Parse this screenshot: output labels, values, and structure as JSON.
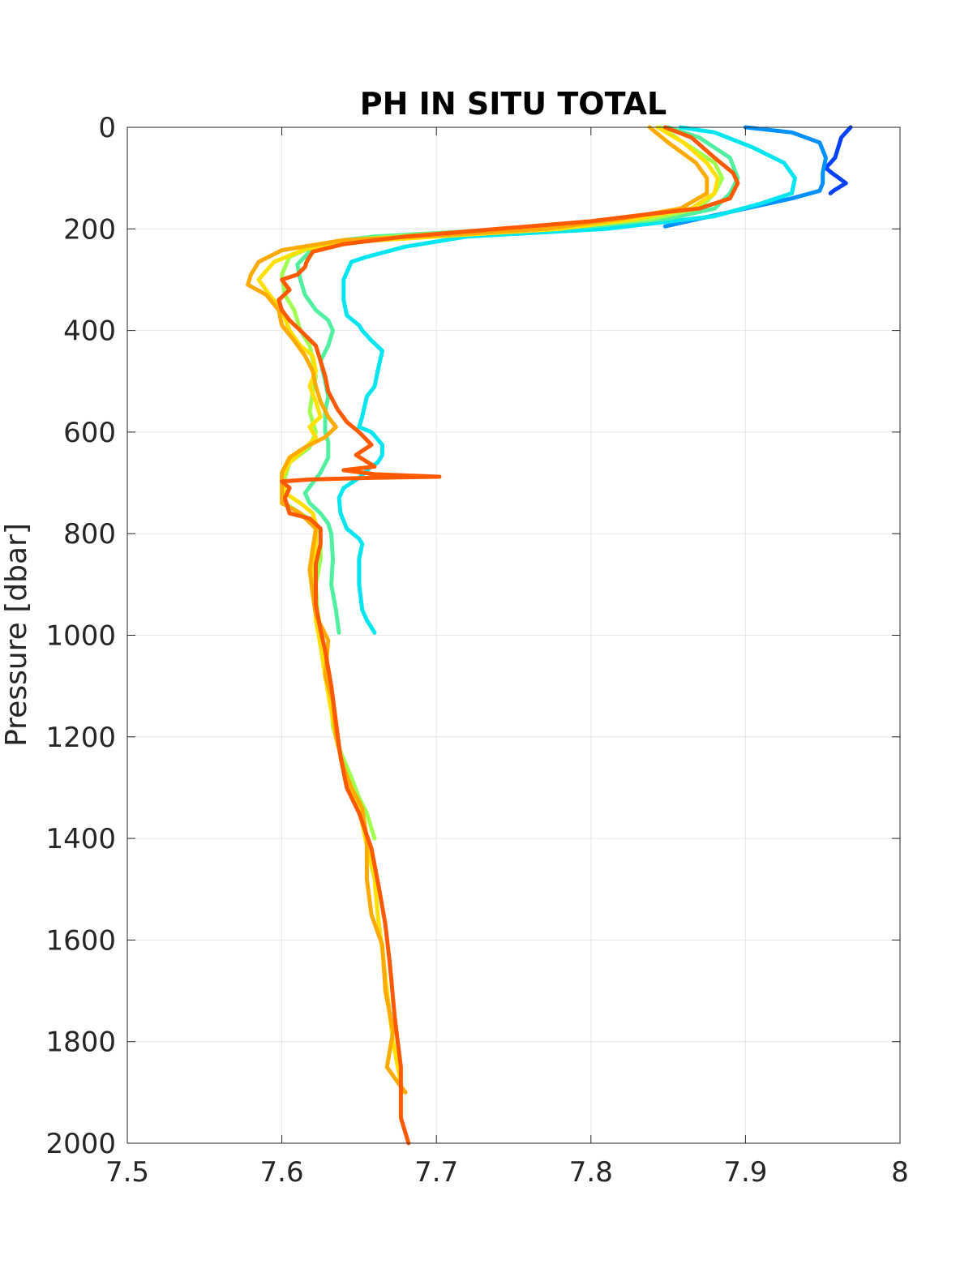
{
  "chart_data": {
    "type": "line",
    "title": "PH IN SITU TOTAL",
    "xlabel": "",
    "ylabel": "Pressure [dbar]",
    "xlim": [
      7.5,
      8
    ],
    "ylim": [
      0,
      2000
    ],
    "y_reversed": true,
    "grid": true,
    "xticks": [
      "7.5",
      "7.6",
      "7.7",
      "7.8",
      "7.9",
      "8"
    ],
    "yticks": [
      "0",
      "200",
      "400",
      "600",
      "800",
      "1000",
      "1200",
      "1400",
      "1600",
      "1800",
      "2000"
    ],
    "series": [
      {
        "color": "#0040ff",
        "points": [
          [
            7.968,
            0
          ],
          [
            7.962,
            20
          ],
          [
            7.958,
            60
          ],
          [
            7.952,
            80
          ],
          [
            7.956,
            90
          ],
          [
            7.965,
            110
          ],
          [
            7.957,
            125
          ],
          [
            7.955,
            130
          ]
        ]
      },
      {
        "color": "#0090ff",
        "points": [
          [
            7.9,
            0
          ],
          [
            7.93,
            10
          ],
          [
            7.948,
            30
          ],
          [
            7.952,
            60
          ],
          [
            7.95,
            90
          ],
          [
            7.95,
            110
          ],
          [
            7.948,
            125
          ],
          [
            7.93,
            140
          ],
          [
            7.9,
            160
          ],
          [
            7.87,
            180
          ],
          [
            7.848,
            195
          ]
        ]
      },
      {
        "color": "#00e6f0",
        "points": [
          [
            7.858,
            0
          ],
          [
            7.88,
            10
          ],
          [
            7.905,
            40
          ],
          [
            7.925,
            70
          ],
          [
            7.932,
            100
          ],
          [
            7.93,
            130
          ],
          [
            7.91,
            150
          ],
          [
            7.88,
            175
          ],
          [
            7.81,
            200
          ],
          [
            7.72,
            215
          ],
          [
            7.68,
            235
          ],
          [
            7.655,
            255
          ],
          [
            7.645,
            265
          ],
          [
            7.64,
            300
          ],
          [
            7.64,
            340
          ],
          [
            7.642,
            370
          ],
          [
            7.65,
            390
          ],
          [
            7.652,
            400
          ],
          [
            7.658,
            420
          ],
          [
            7.665,
            440
          ],
          [
            7.662,
            480
          ],
          [
            7.66,
            510
          ],
          [
            7.655,
            530
          ],
          [
            7.652,
            570
          ],
          [
            7.65,
            590
          ],
          [
            7.658,
            600
          ],
          [
            7.665,
            625
          ],
          [
            7.665,
            645
          ],
          [
            7.662,
            660
          ],
          [
            7.657,
            670
          ],
          [
            7.65,
            690
          ],
          [
            7.64,
            710
          ],
          [
            7.637,
            730
          ],
          [
            7.638,
            760
          ],
          [
            7.642,
            790
          ],
          [
            7.65,
            810
          ],
          [
            7.652,
            820
          ],
          [
            7.65,
            850
          ],
          [
            7.65,
            900
          ],
          [
            7.652,
            950
          ],
          [
            7.655,
            970
          ],
          [
            7.66,
            995
          ]
        ]
      },
      {
        "color": "#50f0a0",
        "points": [
          [
            7.85,
            0
          ],
          [
            7.87,
            20
          ],
          [
            7.89,
            60
          ],
          [
            7.895,
            100
          ],
          [
            7.89,
            130
          ],
          [
            7.88,
            160
          ],
          [
            7.85,
            180
          ],
          [
            7.8,
            195
          ],
          [
            7.72,
            205
          ],
          [
            7.66,
            215
          ],
          [
            7.64,
            222
          ],
          [
            7.628,
            230
          ],
          [
            7.618,
            245
          ],
          [
            7.61,
            270
          ],
          [
            7.612,
            300
          ],
          [
            7.615,
            330
          ],
          [
            7.622,
            360
          ],
          [
            7.63,
            380
          ],
          [
            7.633,
            400
          ],
          [
            7.63,
            430
          ],
          [
            7.625,
            460
          ],
          [
            7.628,
            500
          ],
          [
            7.63,
            530
          ],
          [
            7.628,
            560
          ],
          [
            7.628,
            600
          ],
          [
            7.63,
            620
          ],
          [
            7.63,
            650
          ],
          [
            7.625,
            680
          ],
          [
            7.62,
            700
          ],
          [
            7.615,
            720
          ],
          [
            7.618,
            740
          ],
          [
            7.625,
            760
          ],
          [
            7.63,
            780
          ],
          [
            7.632,
            800
          ],
          [
            7.633,
            850
          ],
          [
            7.632,
            900
          ],
          [
            7.635,
            950
          ],
          [
            7.637,
            995
          ]
        ]
      },
      {
        "color": "#a0ff50",
        "points": [
          [
            7.845,
            0
          ],
          [
            7.86,
            30
          ],
          [
            7.88,
            70
          ],
          [
            7.885,
            100
          ],
          [
            7.88,
            130
          ],
          [
            7.87,
            160
          ],
          [
            7.84,
            180
          ],
          [
            7.79,
            195
          ],
          [
            7.72,
            205
          ],
          [
            7.65,
            220
          ],
          [
            7.62,
            235
          ],
          [
            7.605,
            255
          ],
          [
            7.6,
            290
          ],
          [
            7.602,
            330
          ],
          [
            7.608,
            360
          ],
          [
            7.612,
            400
          ],
          [
            7.618,
            430
          ],
          [
            7.62,
            460
          ],
          [
            7.622,
            490
          ],
          [
            7.62,
            520
          ],
          [
            7.618,
            560
          ],
          [
            7.622,
            600
          ],
          [
            7.618,
            630
          ],
          [
            7.605,
            660
          ],
          [
            7.602,
            690
          ],
          [
            7.6,
            720
          ],
          [
            7.602,
            740
          ],
          [
            7.612,
            760
          ],
          [
            7.622,
            780
          ],
          [
            7.625,
            800
          ],
          [
            7.625,
            850
          ],
          [
            7.622,
            900
          ],
          [
            7.623,
            950
          ],
          [
            7.625,
            990
          ],
          [
            7.628,
            1030
          ],
          [
            7.63,
            1080
          ],
          [
            7.632,
            1130
          ],
          [
            7.633,
            1180
          ],
          [
            7.638,
            1230
          ],
          [
            7.645,
            1280
          ],
          [
            7.65,
            1320
          ],
          [
            7.655,
            1350
          ],
          [
            7.658,
            1380
          ],
          [
            7.66,
            1400
          ]
        ]
      },
      {
        "color": "#ffe000",
        "points": [
          [
            7.843,
            0
          ],
          [
            7.86,
            30
          ],
          [
            7.875,
            70
          ],
          [
            7.882,
            100
          ],
          [
            7.88,
            130
          ],
          [
            7.865,
            160
          ],
          [
            7.83,
            180
          ],
          [
            7.78,
            200
          ],
          [
            7.7,
            215
          ],
          [
            7.65,
            225
          ],
          [
            7.615,
            240
          ],
          [
            7.595,
            265
          ],
          [
            7.585,
            300
          ],
          [
            7.592,
            330
          ],
          [
            7.6,
            360
          ],
          [
            7.605,
            400
          ],
          [
            7.612,
            430
          ],
          [
            7.62,
            450
          ],
          [
            7.622,
            480
          ],
          [
            7.618,
            510
          ],
          [
            7.622,
            540
          ],
          [
            7.625,
            570
          ],
          [
            7.618,
            590
          ],
          [
            7.622,
            610
          ],
          [
            7.612,
            640
          ],
          [
            7.605,
            660
          ],
          [
            7.6,
            690
          ],
          [
            7.602,
            720
          ],
          [
            7.612,
            740
          ],
          [
            7.62,
            760
          ],
          [
            7.622,
            780
          ],
          [
            7.622,
            820
          ],
          [
            7.62,
            870
          ],
          [
            7.622,
            920
          ],
          [
            7.622,
            970
          ],
          [
            7.625,
            1020
          ],
          [
            7.628,
            1080
          ],
          [
            7.632,
            1150
          ],
          [
            7.635,
            1200
          ],
          [
            7.64,
            1260
          ],
          [
            7.645,
            1300
          ],
          [
            7.65,
            1340
          ],
          [
            7.654,
            1400
          ],
          [
            7.66,
            1480
          ],
          [
            7.662,
            1550
          ],
          [
            7.665,
            1620
          ],
          [
            7.668,
            1700
          ],
          [
            7.672,
            1800
          ],
          [
            7.678,
            1900
          ]
        ]
      },
      {
        "color": "#ffaa00",
        "points": [
          [
            7.838,
            0
          ],
          [
            7.85,
            30
          ],
          [
            7.868,
            70
          ],
          [
            7.875,
            100
          ],
          [
            7.875,
            130
          ],
          [
            7.858,
            160
          ],
          [
            7.82,
            180
          ],
          [
            7.77,
            200
          ],
          [
            7.7,
            213
          ],
          [
            7.64,
            222
          ],
          [
            7.6,
            242
          ],
          [
            7.585,
            265
          ],
          [
            7.58,
            290
          ],
          [
            7.578,
            310
          ],
          [
            7.59,
            330
          ],
          [
            7.598,
            360
          ],
          [
            7.6,
            390
          ],
          [
            7.608,
            420
          ],
          [
            7.615,
            450
          ],
          [
            7.62,
            480
          ],
          [
            7.622,
            510
          ],
          [
            7.625,
            540
          ],
          [
            7.63,
            570
          ],
          [
            7.635,
            590
          ],
          [
            7.628,
            610
          ],
          [
            7.615,
            630
          ],
          [
            7.605,
            650
          ],
          [
            7.6,
            680
          ],
          [
            7.6,
            710
          ],
          [
            7.6,
            740
          ],
          [
            7.612,
            760
          ],
          [
            7.622,
            790
          ],
          [
            7.62,
            830
          ],
          [
            7.618,
            870
          ],
          [
            7.62,
            920
          ],
          [
            7.622,
            960
          ],
          [
            7.63,
            1010
          ],
          [
            7.628,
            1080
          ],
          [
            7.633,
            1130
          ],
          [
            7.635,
            1200
          ],
          [
            7.64,
            1260
          ],
          [
            7.645,
            1300
          ],
          [
            7.652,
            1340
          ],
          [
            7.655,
            1400
          ],
          [
            7.655,
            1480
          ],
          [
            7.658,
            1550
          ],
          [
            7.665,
            1610
          ],
          [
            7.667,
            1700
          ],
          [
            7.672,
            1780
          ],
          [
            7.668,
            1850
          ],
          [
            7.675,
            1880
          ],
          [
            7.68,
            1900
          ]
        ]
      },
      {
        "color": "#ff5a00",
        "points": [
          [
            7.848,
            0
          ],
          [
            7.865,
            20
          ],
          [
            7.88,
            60
          ],
          [
            7.892,
            90
          ],
          [
            7.895,
            110
          ],
          [
            7.89,
            140
          ],
          [
            7.87,
            160
          ],
          [
            7.84,
            170
          ],
          [
            7.8,
            185
          ],
          [
            7.74,
            200
          ],
          [
            7.7,
            210
          ],
          [
            7.68,
            215
          ],
          [
            7.64,
            230
          ],
          [
            7.62,
            245
          ],
          [
            7.616,
            265
          ],
          [
            7.615,
            275
          ],
          [
            7.61,
            290
          ],
          [
            7.6,
            300
          ],
          [
            7.605,
            320
          ],
          [
            7.598,
            340
          ],
          [
            7.6,
            360
          ],
          [
            7.605,
            380
          ],
          [
            7.612,
            400
          ],
          [
            7.622,
            430
          ],
          [
            7.625,
            460
          ],
          [
            7.628,
            490
          ],
          [
            7.63,
            520
          ],
          [
            7.636,
            555
          ],
          [
            7.642,
            580
          ],
          [
            7.65,
            600
          ],
          [
            7.658,
            625
          ],
          [
            7.648,
            645
          ],
          [
            7.66,
            668
          ],
          [
            7.64,
            675
          ],
          [
            7.66,
            683
          ],
          [
            7.702,
            688
          ],
          [
            7.66,
            690
          ],
          [
            7.62,
            693
          ],
          [
            7.6,
            697
          ],
          [
            7.605,
            710
          ],
          [
            7.602,
            730
          ],
          [
            7.605,
            760
          ],
          [
            7.618,
            770
          ],
          [
            7.625,
            790
          ],
          [
            7.625,
            820
          ],
          [
            7.622,
            860
          ],
          [
            7.622,
            900
          ],
          [
            7.622,
            940
          ],
          [
            7.625,
            990
          ],
          [
            7.628,
            1030
          ],
          [
            7.632,
            1100
          ],
          [
            7.635,
            1170
          ],
          [
            7.638,
            1240
          ],
          [
            7.642,
            1300
          ],
          [
            7.65,
            1350
          ],
          [
            7.658,
            1420
          ],
          [
            7.663,
            1500
          ],
          [
            7.667,
            1570
          ],
          [
            7.67,
            1650
          ],
          [
            7.673,
            1750
          ],
          [
            7.675,
            1800
          ],
          [
            7.677,
            1850
          ],
          [
            7.677,
            1950
          ],
          [
            7.682,
            2000
          ]
        ]
      }
    ]
  }
}
